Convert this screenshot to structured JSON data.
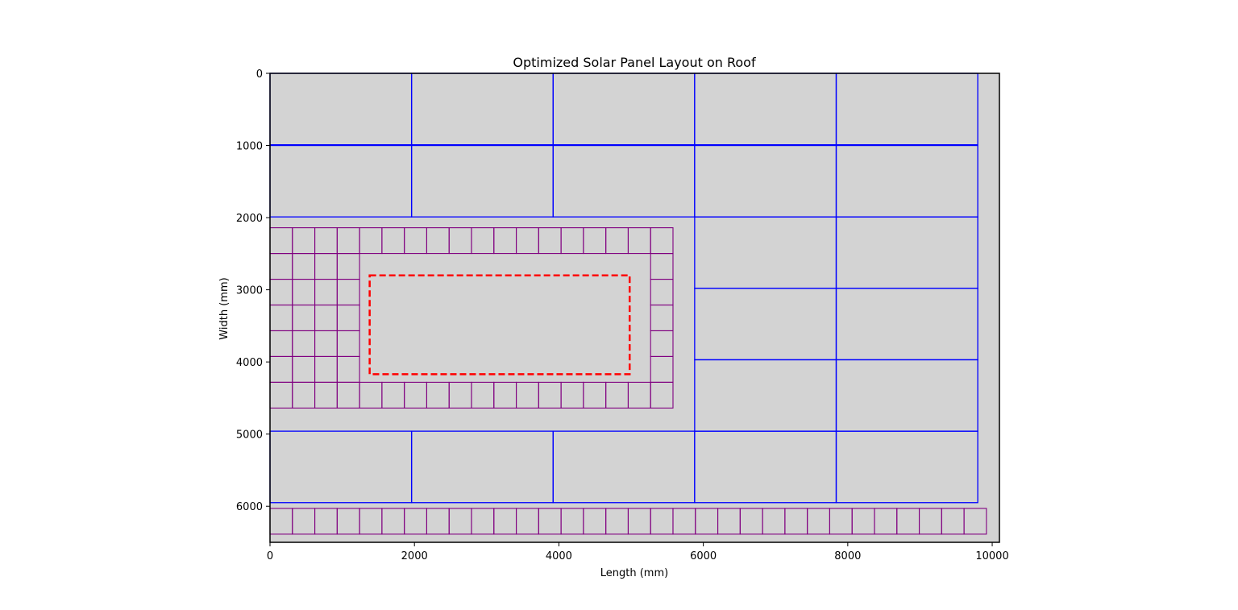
{
  "chart_data": {
    "type": "scatter",
    "title": "Optimized Solar Panel Layout on Roof",
    "xlabel": "Length (mm)",
    "ylabel": "Width (mm)",
    "xlim": [
      0,
      10100
    ],
    "ylim": [
      6500,
      0
    ],
    "y_inverted": true,
    "grid": false,
    "x_ticks": [
      0,
      2000,
      4000,
      6000,
      8000,
      10000
    ],
    "y_ticks": [
      0,
      1000,
      2000,
      3000,
      4000,
      5000,
      6000
    ],
    "colors": {
      "roof": "#d3d3d3",
      "large_panel": "#0000ff",
      "small_panel": "#800080",
      "obstacle": "#ff0000"
    },
    "large_panel_size": [
      1960,
      990
    ],
    "small_panel_size": [
      310,
      357
    ],
    "large_panels": [
      [
        0,
        0
      ],
      [
        1960,
        0
      ],
      [
        3920,
        0
      ],
      [
        5880,
        0
      ],
      [
        7840,
        0
      ],
      [
        0,
        1000
      ],
      [
        1960,
        1000
      ],
      [
        3920,
        1000
      ],
      [
        5880,
        1000
      ],
      [
        7840,
        1000
      ],
      [
        5880,
        1990
      ],
      [
        7840,
        1990
      ],
      [
        5880,
        2980
      ],
      [
        7840,
        2980
      ],
      [
        5880,
        3970
      ],
      [
        7840,
        3970
      ],
      [
        0,
        4960
      ],
      [
        1960,
        4960
      ],
      [
        3920,
        4960
      ],
      [
        5880,
        4960
      ],
      [
        7840,
        4960
      ]
    ],
    "small_panel_groups": [
      {
        "x_start": 0,
        "y": 2140,
        "count": 18
      },
      {
        "x_start": 0,
        "y": 2497,
        "count": 4
      },
      {
        "x_start": 5270,
        "y": 2497,
        "count": 1
      },
      {
        "x_start": 0,
        "y": 2854,
        "count": 4
      },
      {
        "x_start": 5270,
        "y": 2854,
        "count": 1
      },
      {
        "x_start": 0,
        "y": 3211,
        "count": 4
      },
      {
        "x_start": 5270,
        "y": 3211,
        "count": 1
      },
      {
        "x_start": 0,
        "y": 3568,
        "count": 4
      },
      {
        "x_start": 5270,
        "y": 3568,
        "count": 1
      },
      {
        "x_start": 0,
        "y": 3925,
        "count": 4
      },
      {
        "x_start": 5270,
        "y": 3925,
        "count": 1
      },
      {
        "x_start": 0,
        "y": 4282,
        "count": 18
      },
      {
        "x_start": 0,
        "y": 6030,
        "count": 32
      }
    ],
    "obstacle": {
      "x": 1380,
      "y": 2800,
      "w": 3600,
      "h": 1370
    }
  }
}
